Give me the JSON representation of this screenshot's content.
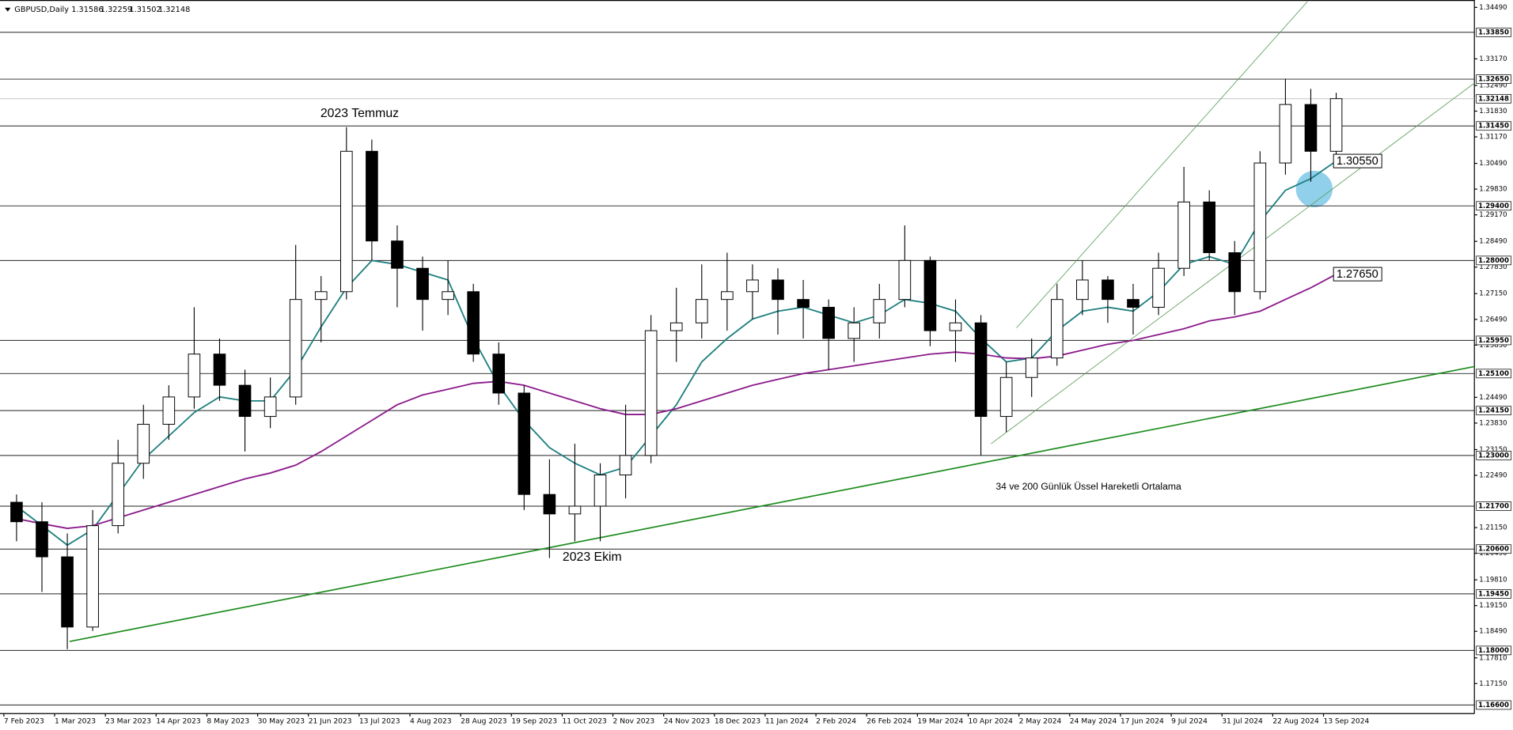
{
  "header": {
    "symbol": "GBPUSD,Daily",
    "ohlc": [
      "1.31586",
      "1.32259",
      "1.31502",
      "1.32148"
    ]
  },
  "chart_data": {
    "type": "candlestick",
    "annotations": [
      "2023 Temmuz",
      "2023 Ekim",
      "34 ve 200 Günlük Üssel Hareketli Ortalama"
    ],
    "categories": [
      "7 Feb 2023",
      null,
      "1 Mar 2023",
      null,
      "23 Mar 2023",
      null,
      "14 Apr 2023",
      null,
      "8 May 2023",
      null,
      "30 May 2023",
      null,
      "21 Jun 2023",
      null,
      "13 Jul 2023",
      null,
      "4 Aug 2023",
      null,
      "28 Aug 2023",
      null,
      "19 Sep 2023",
      null,
      "11 Oct 2023",
      null,
      "2 Nov 2023",
      null,
      "24 Nov 2023",
      null,
      "18 Dec 2023",
      null,
      "11 Jan 2024",
      null,
      "2 Feb 2024",
      null,
      "26 Feb 2024",
      null,
      "19 Mar 2024",
      null,
      "10 Apr 2024",
      null,
      "2 May 2024",
      null,
      "24 May 2024",
      null,
      "17 Jun 2024",
      null,
      "9 Jul 2024",
      null,
      "31 Jul 2024",
      null,
      "22 Aug 2024",
      null,
      "13 Sep 2024"
    ],
    "open": [
      1.218,
      1.213,
      1.204,
      1.186,
      1.212,
      1.228,
      1.238,
      1.245,
      1.256,
      1.248,
      1.24,
      1.245,
      1.27,
      1.272,
      1.308,
      1.285,
      1.278,
      1.27,
      1.272,
      1.256,
      1.246,
      1.22,
      1.215,
      1.217,
      1.225,
      1.23,
      1.262,
      1.264,
      1.27,
      1.272,
      1.275,
      1.27,
      1.268,
      1.26,
      1.264,
      1.27,
      1.28,
      1.262,
      1.264,
      1.24,
      1.25,
      1.255,
      1.27,
      1.275,
      1.27,
      1.268,
      1.278,
      1.295,
      1.282,
      1.272,
      1.305,
      1.32,
      1.308
    ],
    "high": [
      1.22,
      1.218,
      1.21,
      1.216,
      1.234,
      1.243,
      1.248,
      1.268,
      1.26,
      1.252,
      1.25,
      1.284,
      1.276,
      1.3142,
      1.311,
      1.289,
      1.281,
      1.28,
      1.274,
      1.259,
      1.248,
      1.229,
      1.233,
      1.228,
      1.243,
      1.266,
      1.273,
      1.279,
      1.282,
      1.279,
      1.278,
      1.275,
      1.27,
      1.268,
      1.274,
      1.289,
      1.281,
      1.27,
      1.266,
      1.254,
      1.26,
      1.274,
      1.28,
      1.276,
      1.274,
      1.282,
      1.304,
      1.298,
      1.285,
      1.308,
      1.3266,
      1.324,
      1.323
    ],
    "low": [
      1.208,
      1.195,
      1.1803,
      1.185,
      1.21,
      1.224,
      1.234,
      1.242,
      1.244,
      1.231,
      1.237,
      1.243,
      1.259,
      1.27,
      1.28,
      1.268,
      1.262,
      1.266,
      1.254,
      1.243,
      1.216,
      1.2037,
      1.208,
      1.208,
      1.219,
      1.228,
      1.254,
      1.26,
      1.262,
      1.265,
      1.261,
      1.26,
      1.252,
      1.254,
      1.26,
      1.268,
      1.258,
      1.254,
      1.23,
      1.236,
      1.245,
      1.253,
      1.266,
      1.264,
      1.261,
      1.266,
      1.276,
      1.28,
      1.266,
      1.27,
      1.302,
      1.3002,
      1.306
    ],
    "close": [
      1.213,
      1.204,
      1.186,
      1.212,
      1.228,
      1.238,
      1.245,
      1.256,
      1.248,
      1.24,
      1.245,
      1.27,
      1.272,
      1.308,
      1.285,
      1.278,
      1.27,
      1.272,
      1.256,
      1.246,
      1.22,
      1.215,
      1.217,
      1.225,
      1.23,
      1.262,
      1.264,
      1.27,
      1.272,
      1.275,
      1.27,
      1.268,
      1.26,
      1.264,
      1.27,
      1.28,
      1.262,
      1.264,
      1.24,
      1.25,
      1.255,
      1.27,
      1.275,
      1.27,
      1.268,
      1.278,
      1.295,
      1.282,
      1.272,
      1.305,
      1.32,
      1.308,
      1.3215
    ],
    "series": [
      {
        "color": "#1f7f80",
        "values": [
          1.217,
          1.212,
          1.207,
          1.211,
          1.22,
          1.229,
          1.235,
          1.241,
          1.245,
          1.244,
          1.244,
          1.252,
          1.263,
          1.273,
          1.28,
          1.279,
          1.277,
          1.275,
          1.26,
          1.248,
          1.239,
          1.232,
          1.228,
          1.225,
          1.227,
          1.235,
          1.243,
          1.254,
          1.26,
          1.265,
          1.267,
          1.268,
          1.266,
          1.264,
          1.266,
          1.27,
          1.269,
          1.267,
          1.26,
          1.254,
          1.255,
          1.262,
          1.267,
          1.268,
          1.267,
          1.272,
          1.279,
          1.281,
          1.279,
          1.29,
          1.298,
          1.301,
          1.3055
        ]
      },
      {
        "color": "#8b1a8b",
        "values": [
          1.2138,
          1.2125,
          1.2113,
          1.212,
          1.214,
          1.216,
          1.218,
          1.22,
          1.222,
          1.224,
          1.2255,
          1.2275,
          1.231,
          1.235,
          1.239,
          1.243,
          1.2455,
          1.247,
          1.2485,
          1.249,
          1.248,
          1.246,
          1.244,
          1.242,
          1.2405,
          1.2405,
          1.242,
          1.244,
          1.246,
          1.248,
          1.2495,
          1.251,
          1.252,
          1.253,
          1.254,
          1.255,
          1.256,
          1.2565,
          1.256,
          1.255,
          1.2548,
          1.2555,
          1.257,
          1.2585,
          1.2595,
          1.261,
          1.2625,
          1.2645,
          1.2655,
          1.267,
          1.27,
          1.273,
          1.2765
        ]
      }
    ],
    "ylim": [
      1.1638,
      1.3463
    ],
    "yticks": [
      {
        "value": 1.3449,
        "label": "1.34490"
      },
      {
        "value": 1.3317,
        "label": "1.33170"
      },
      {
        "value": 1.3249,
        "label": "1.32490"
      },
      {
        "value": 1.3183,
        "label": "1.31830"
      },
      {
        "value": 1.3117,
        "label": "1.31170"
      },
      {
        "value": 1.3049,
        "label": "1.30490"
      },
      {
        "value": 1.2983,
        "label": "1.29830"
      },
      {
        "value": 1.2917,
        "label": "1.29170"
      },
      {
        "value": 1.2849,
        "label": "1.28490"
      },
      {
        "value": 1.2783,
        "label": "1.27830"
      },
      {
        "value": 1.2715,
        "label": "1.27150"
      },
      {
        "value": 1.2649,
        "label": "1.26490"
      },
      {
        "value": 1.2583,
        "label": "1.25830"
      },
      {
        "value": 1.2449,
        "label": "1.24490"
      },
      {
        "value": 1.2383,
        "label": "1.23830"
      },
      {
        "value": 1.2315,
        "label": "1.23150"
      },
      {
        "value": 1.2249,
        "label": "1.22490"
      },
      {
        "value": 1.2115,
        "label": "1.21150"
      },
      {
        "value": 1.2049,
        "label": "1.20490"
      },
      {
        "value": 1.1981,
        "label": "1.19810"
      },
      {
        "value": 1.1915,
        "label": "1.19150"
      },
      {
        "value": 1.1849,
        "label": "1.18490"
      },
      {
        "value": 1.1781,
        "label": "1.17810"
      },
      {
        "value": 1.1715,
        "label": "1.17150"
      }
    ],
    "levels": [
      {
        "value": 1.3385,
        "label": "1.33850"
      },
      {
        "value": 1.3265,
        "label": "1.32650"
      },
      {
        "value": 1.3145,
        "label": "1.31450"
      },
      {
        "value": 1.294,
        "label": "1.29400"
      },
      {
        "value": 1.28,
        "label": "1.28000"
      },
      {
        "value": 1.2595,
        "label": "1.25950"
      },
      {
        "value": 1.251,
        "label": "1.25100"
      },
      {
        "value": 1.2415,
        "label": "1.24150"
      },
      {
        "value": 1.23,
        "label": "1.23000"
      },
      {
        "value": 1.217,
        "label": "1.21700"
      },
      {
        "value": 1.206,
        "label": "1.20600"
      },
      {
        "value": 1.1945,
        "label": "1.19450"
      },
      {
        "value": 1.18,
        "label": "1.18000"
      },
      {
        "value": 1.166,
        "label": "1.16600"
      }
    ],
    "last_price": {
      "value": 1.32148,
      "label": "1.32148"
    },
    "level_labels": [
      {
        "value": 1.3055,
        "label": "1.30550"
      },
      {
        "value": 1.2765,
        "label": "1.27650"
      }
    ],
    "trendlines": [
      {
        "x": [
          2.09,
          57.45
        ],
        "y": [
          1.1823,
          1.2528
        ],
        "color": "#1e8c1e"
      },
      {
        "x": [
          38.4,
          57.45
        ],
        "y": [
          1.233,
          1.3255
        ],
        "color": "#5aa05a"
      },
      {
        "x": [
          39.4,
          50.87
        ],
        "y": [
          1.2627,
          1.3464
        ],
        "color": "#5aa05a"
      }
    ]
  }
}
